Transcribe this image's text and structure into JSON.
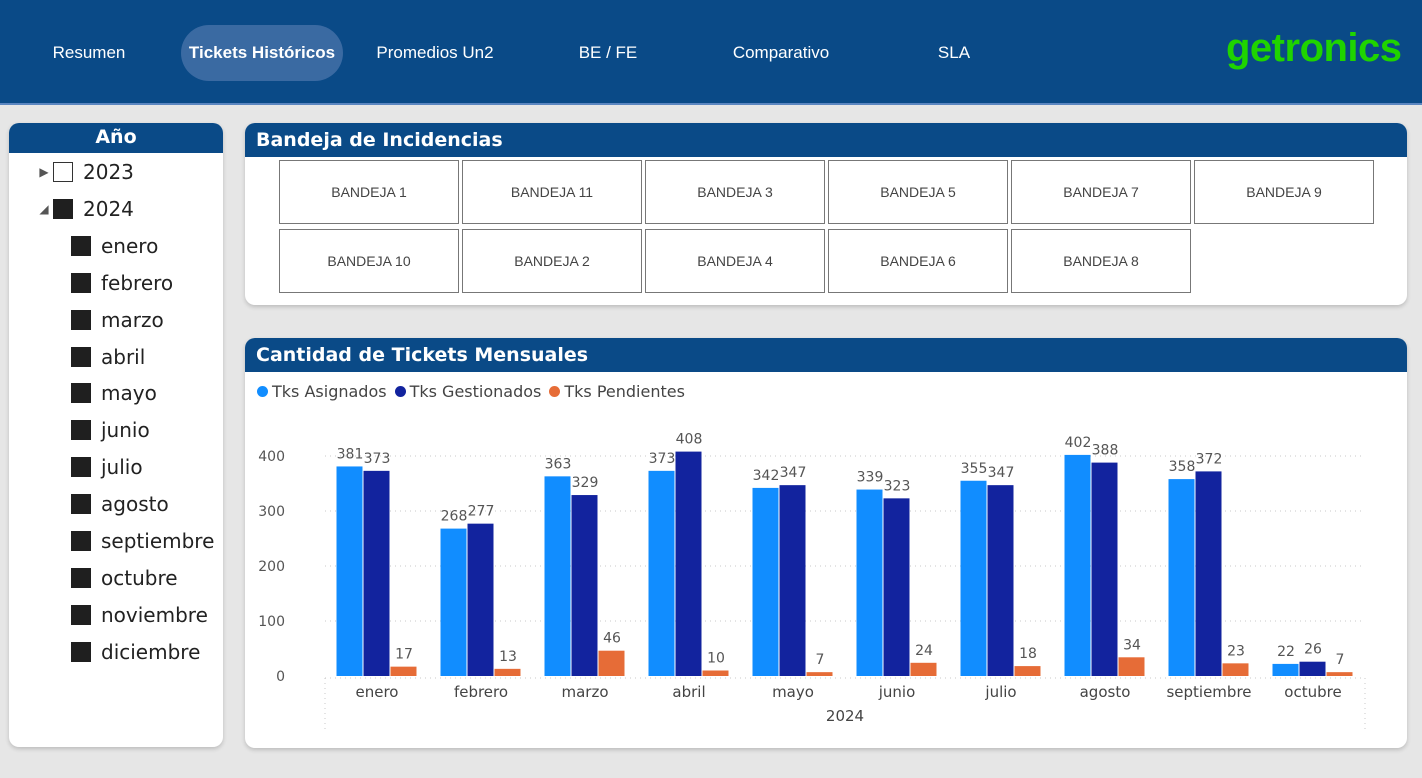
{
  "nav": {
    "tabs": [
      {
        "label": "Resumen"
      },
      {
        "label": "Tickets Históricos"
      },
      {
        "label": "Promedios Un2"
      },
      {
        "label": "BE / FE"
      },
      {
        "label": "Comparativo"
      },
      {
        "label": "SLA"
      }
    ],
    "active_index": 1,
    "logo_text": "getronics"
  },
  "year_filter": {
    "title": "Año",
    "years": [
      {
        "label": "2023",
        "checked": false,
        "expanded": false
      },
      {
        "label": "2024",
        "checked": true,
        "expanded": true
      }
    ],
    "months": [
      "enero",
      "febrero",
      "marzo",
      "abril",
      "mayo",
      "junio",
      "julio",
      "agosto",
      "septiembre",
      "octubre",
      "noviembre",
      "diciembre"
    ]
  },
  "bandejas": {
    "title": "Bandeja de Incidencias",
    "items": [
      "BANDEJA 1",
      "BANDEJA 11",
      "BANDEJA 3",
      "BANDEJA 5",
      "BANDEJA 7",
      "BANDEJA 9",
      "BANDEJA 10",
      "BANDEJA 2",
      "BANDEJA 4",
      "BANDEJA 6",
      "BANDEJA 8"
    ]
  },
  "chart": {
    "title": "Cantidad de Tickets Mensuales"
  },
  "chart_data": {
    "type": "bar",
    "title": "Cantidad de Tickets Mensuales",
    "categories": [
      "enero",
      "febrero",
      "marzo",
      "abril",
      "mayo",
      "junio",
      "julio",
      "agosto",
      "septiembre",
      "octubre"
    ],
    "xlabel": "2024",
    "ylabel": "",
    "ylim": [
      0,
      430
    ],
    "yticks": [
      0,
      100,
      200,
      300,
      400
    ],
    "grid": true,
    "legend_position": "top-left",
    "series": [
      {
        "name": "Tks Asignados",
        "color": "#118dff",
        "values": [
          381,
          268,
          363,
          373,
          342,
          339,
          355,
          402,
          358,
          22
        ]
      },
      {
        "name": "Tks Gestionados",
        "color": "#12239e",
        "values": [
          373,
          277,
          329,
          408,
          347,
          323,
          347,
          388,
          372,
          26
        ]
      },
      {
        "name": "Tks Pendientes",
        "color": "#e66c37",
        "values": [
          17,
          13,
          46,
          10,
          7,
          24,
          18,
          34,
          23,
          7
        ]
      }
    ]
  }
}
